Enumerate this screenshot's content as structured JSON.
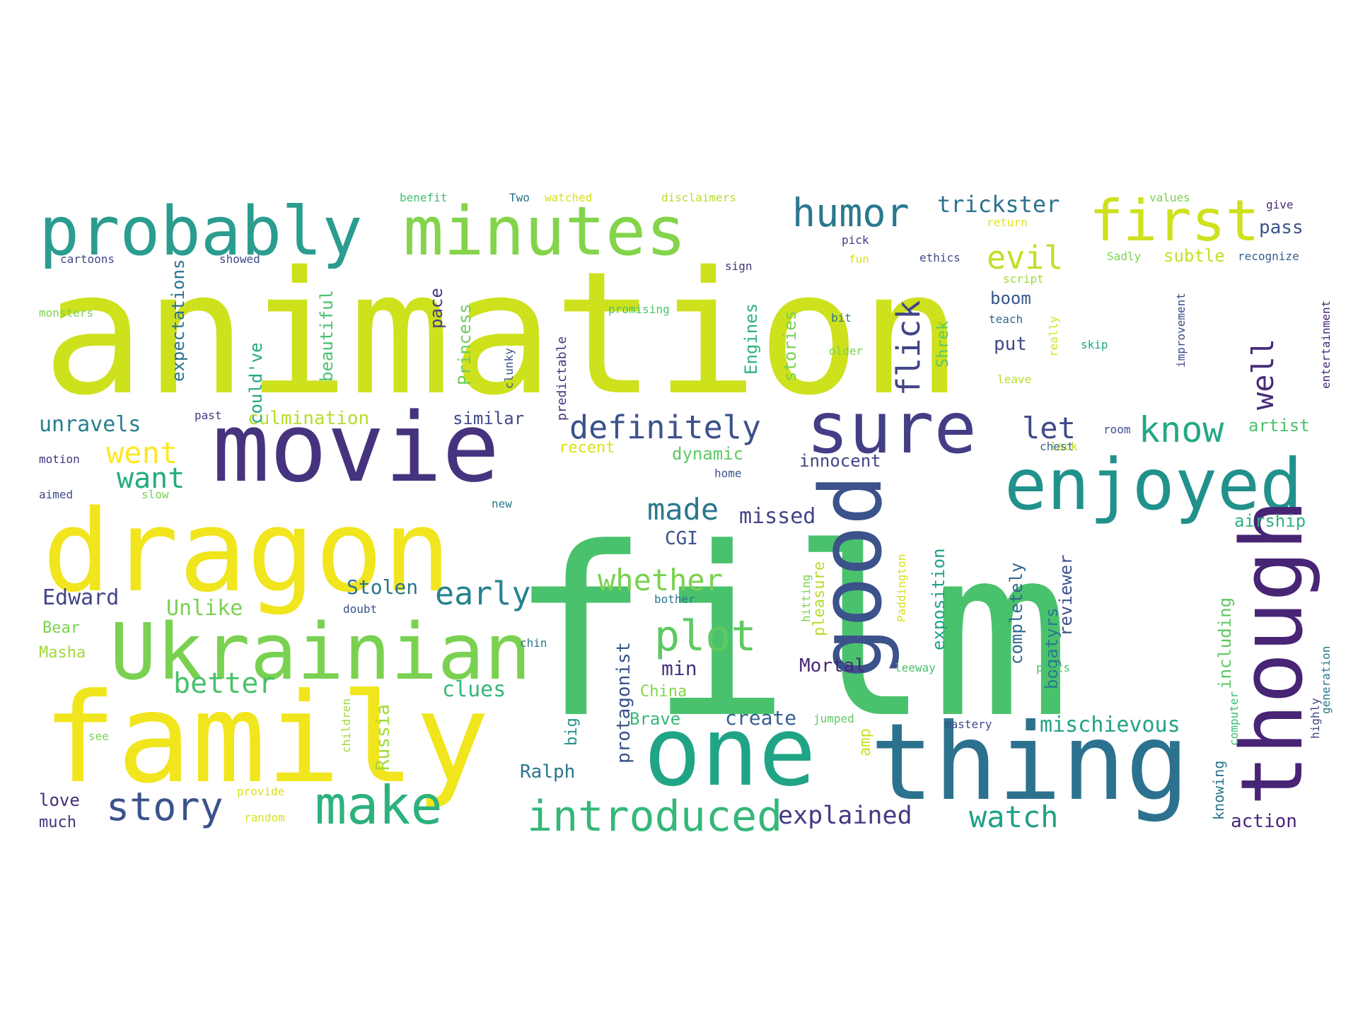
{
  "words": [
    {
      "text": "animation",
      "color": "#cde11d"
    },
    {
      "text": "film",
      "color": "#4ac26d"
    },
    {
      "text": "movie",
      "color": "#46337e"
    },
    {
      "text": "dragon",
      "color": "#f1e51d"
    },
    {
      "text": "family",
      "color": "#f1e51d"
    },
    {
      "text": "Ukrainian",
      "color": "#7ad151"
    },
    {
      "text": "one",
      "color": "#20a486"
    },
    {
      "text": "thing",
      "color": "#2c728e"
    },
    {
      "text": "probably",
      "color": "#2a9d8f"
    },
    {
      "text": "minutes",
      "color": "#84d44b"
    },
    {
      "text": "first",
      "color": "#cde11d"
    },
    {
      "text": "sure",
      "color": "#433e85"
    },
    {
      "text": "good",
      "color": "#3b528b"
    },
    {
      "text": "enjoyed",
      "color": "#21918c"
    },
    {
      "text": "though",
      "color": "#482475"
    },
    {
      "text": "make",
      "color": "#2db27d"
    },
    {
      "text": "story",
      "color": "#3b528b"
    },
    {
      "text": "introduced",
      "color": "#35b779"
    },
    {
      "text": "plot",
      "color": "#5ec962"
    },
    {
      "text": "humor",
      "color": "#2a788e"
    },
    {
      "text": "flick",
      "color": "#414487"
    },
    {
      "text": "evil",
      "color": "#c2df23"
    },
    {
      "text": "trickster",
      "color": "#2c728e"
    },
    {
      "text": "definitely",
      "color": "#3b528b"
    },
    {
      "text": "know",
      "color": "#22a884"
    },
    {
      "text": "let",
      "color": "#3e4a89"
    },
    {
      "text": "well",
      "color": "#472c7a"
    },
    {
      "text": "went",
      "color": "#fde725"
    },
    {
      "text": "want",
      "color": "#25ab82"
    },
    {
      "text": "unravels",
      "color": "#277f8e"
    },
    {
      "text": "made",
      "color": "#2a788e"
    },
    {
      "text": "early",
      "color": "#26828e"
    },
    {
      "text": "whether",
      "color": "#7ad151"
    },
    {
      "text": "better",
      "color": "#4ac16d"
    },
    {
      "text": "explained",
      "color": "#443983"
    },
    {
      "text": "watch",
      "color": "#1fa187"
    },
    {
      "text": "Edward",
      "color": "#414487"
    },
    {
      "text": "Unlike",
      "color": "#7ad151"
    },
    {
      "text": "Stolen",
      "color": "#2c728e"
    },
    {
      "text": "clues",
      "color": "#35b779"
    },
    {
      "text": "missed",
      "color": "#414487"
    },
    {
      "text": "CGI",
      "color": "#3b528b"
    },
    {
      "text": "culmination",
      "color": "#b5de2b"
    },
    {
      "text": "similar",
      "color": "#3e4a89"
    },
    {
      "text": "min",
      "color": "#46327e"
    },
    {
      "text": "Mortal",
      "color": "#482878"
    },
    {
      "text": "Brave",
      "color": "#35b779"
    },
    {
      "text": "create",
      "color": "#355f8d"
    },
    {
      "text": "China",
      "color": "#84d44b"
    },
    {
      "text": "mischievous",
      "color": "#20a386"
    },
    {
      "text": "action",
      "color": "#482878"
    },
    {
      "text": "airship",
      "color": "#2db27d"
    },
    {
      "text": "artist",
      "color": "#4ac16d"
    },
    {
      "text": "Ralph",
      "color": "#2a768e"
    },
    {
      "text": "innocent",
      "color": "#414487"
    },
    {
      "text": "dynamic",
      "color": "#5ec962"
    },
    {
      "text": "recent",
      "color": "#d8e219"
    },
    {
      "text": "pass",
      "color": "#3b528b"
    },
    {
      "text": "subtle",
      "color": "#c2df23"
    },
    {
      "text": "boom",
      "color": "#38588c"
    },
    {
      "text": "put",
      "color": "#3e4a89"
    },
    {
      "text": "love",
      "color": "#472d7b"
    },
    {
      "text": "much",
      "color": "#46337e"
    },
    {
      "text": "Bear",
      "color": "#7ad151"
    },
    {
      "text": "Masha",
      "color": "#a0da39"
    },
    {
      "text": "expectations",
      "color": "#2c728e"
    },
    {
      "text": "could've",
      "color": "#22a884"
    },
    {
      "text": "beautiful",
      "color": "#4ac16d"
    },
    {
      "text": "pace",
      "color": "#443983"
    },
    {
      "text": "Princess",
      "color": "#6ccd5a"
    },
    {
      "text": "predictable",
      "color": "#46327e"
    },
    {
      "text": "Engines",
      "color": "#2fb47c"
    },
    {
      "text": "stories",
      "color": "#7ad151"
    },
    {
      "text": "Shrek",
      "color": "#5ec962"
    },
    {
      "text": "exposition",
      "color": "#1fa188"
    },
    {
      "text": "completely",
      "color": "#31688e"
    },
    {
      "text": "reviewer",
      "color": "#3b528b"
    },
    {
      "text": "bogatyrs",
      "color": "#2a788e"
    },
    {
      "text": "including",
      "color": "#5ec962"
    },
    {
      "text": "protagonist",
      "color": "#3b528b"
    },
    {
      "text": "big",
      "color": "#20928c"
    },
    {
      "text": "Russia",
      "color": "#a0da39"
    },
    {
      "text": "pleasure",
      "color": "#b5de2b"
    },
    {
      "text": "amp",
      "color": "#cde11d"
    },
    {
      "text": "knowing",
      "color": "#2c728e"
    },
    {
      "text": "benefit",
      "color": "#3fbc73"
    },
    {
      "text": "Two",
      "color": "#2c728e"
    },
    {
      "text": "watched",
      "color": "#d8e219"
    },
    {
      "text": "disclaimers",
      "color": "#b5de2b"
    },
    {
      "text": "values",
      "color": "#7ad151"
    },
    {
      "text": "give",
      "color": "#482878"
    },
    {
      "text": "return",
      "color": "#e5e419"
    },
    {
      "text": "pick",
      "color": "#443983"
    },
    {
      "text": "ethics",
      "color": "#3e4a89"
    },
    {
      "text": "Sadly",
      "color": "#7ad151"
    },
    {
      "text": "recognize",
      "color": "#355f8d"
    },
    {
      "text": "cartoons",
      "color": "#3e4a89"
    },
    {
      "text": "showed",
      "color": "#3e4a89"
    },
    {
      "text": "sign",
      "color": "#46327e"
    },
    {
      "text": "fun",
      "color": "#d8e219"
    },
    {
      "text": "script",
      "color": "#a0da39"
    },
    {
      "text": "monsters",
      "color": "#7ad151"
    },
    {
      "text": "promising",
      "color": "#4ac16d"
    },
    {
      "text": "bit",
      "color": "#2a788e"
    },
    {
      "text": "teach",
      "color": "#31688e"
    },
    {
      "text": "skip",
      "color": "#20a386"
    },
    {
      "text": "older",
      "color": "#7ad151"
    },
    {
      "text": "leave",
      "color": "#b5de2b"
    },
    {
      "text": "really",
      "color": "#d8e219"
    },
    {
      "text": "clunky",
      "color": "#3b528b"
    },
    {
      "text": "improvement",
      "color": "#3e4a89"
    },
    {
      "text": "entertainment",
      "color": "#482878"
    },
    {
      "text": "past",
      "color": "#443983"
    },
    {
      "text": "room",
      "color": "#3b528b"
    },
    {
      "text": "lack",
      "color": "#cde11d"
    },
    {
      "text": "chest",
      "color": "#31688e"
    },
    {
      "text": "motion",
      "color": "#46327e"
    },
    {
      "text": "home",
      "color": "#3b528b"
    },
    {
      "text": "aimed",
      "color": "#3e4a89"
    },
    {
      "text": "slow",
      "color": "#7ad151"
    },
    {
      "text": "new",
      "color": "#2a788e"
    },
    {
      "text": "hitting",
      "color": "#7ad151"
    },
    {
      "text": "Paddington",
      "color": "#d8e219"
    },
    {
      "text": "bother",
      "color": "#2a788e"
    },
    {
      "text": "doubt",
      "color": "#3b528b"
    },
    {
      "text": "chin",
      "color": "#2a788e"
    },
    {
      "text": "leeway",
      "color": "#4ac16d"
    },
    {
      "text": "parts",
      "color": "#4ac16d"
    },
    {
      "text": "generation",
      "color": "#2a788e"
    },
    {
      "text": "highly",
      "color": "#3e4a89"
    },
    {
      "text": "computer",
      "color": "#3fbc73"
    },
    {
      "text": "jumped",
      "color": "#5ec962"
    },
    {
      "text": "mastery",
      "color": "#3e4a89"
    },
    {
      "text": "children",
      "color": "#a0da39"
    },
    {
      "text": "see",
      "color": "#7ad151"
    },
    {
      "text": "provide",
      "color": "#d8e219"
    },
    {
      "text": "random",
      "color": "#d8e219"
    }
  ]
}
